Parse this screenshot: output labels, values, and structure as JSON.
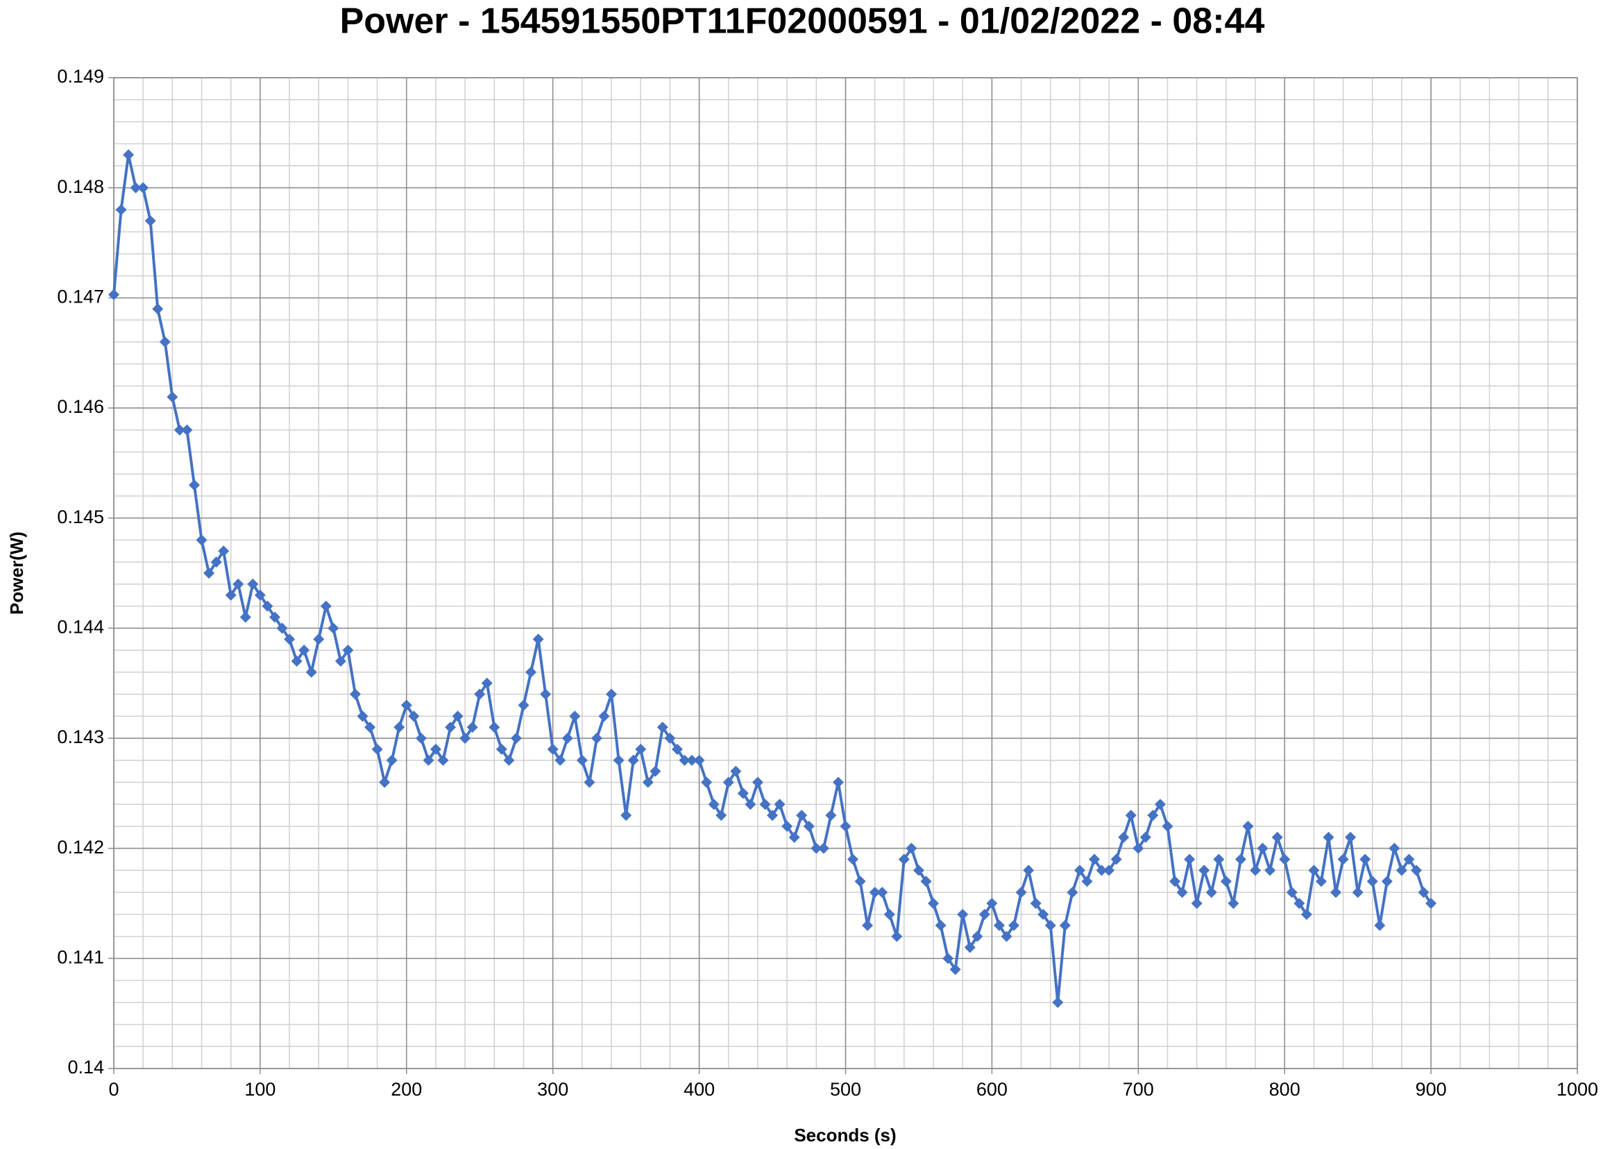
{
  "chart_data": {
    "type": "line",
    "title": "Power - 154591550PT11F02000591 - 01/02/2022 - 08:44",
    "x_label": "Seconds (s)",
    "y_label": "Power(W)",
    "xlim": [
      0,
      1000
    ],
    "xticks": [
      0,
      100,
      200,
      300,
      400,
      500,
      600,
      700,
      800,
      900,
      1000
    ],
    "ylim": [
      0.14,
      0.149
    ],
    "yticks": [
      0.14,
      0.141,
      0.142,
      0.143,
      0.144,
      0.145,
      0.146,
      0.147,
      0.148,
      0.149
    ],
    "x_minor_ticks": [
      0,
      20,
      40,
      60,
      80,
      100,
      120,
      140,
      160,
      180,
      200,
      220,
      240,
      260,
      280,
      300,
      320,
      340,
      360,
      380,
      400,
      420,
      440,
      460,
      480,
      500,
      520,
      540,
      560,
      580,
      600,
      620,
      640,
      660,
      680,
      700,
      720,
      740,
      760,
      780,
      800,
      820,
      840,
      860,
      880,
      900,
      920,
      940,
      960,
      980,
      1000
    ],
    "y_minor_ticks": [
      0.14,
      0.1402,
      0.1404,
      0.1406,
      0.1408,
      0.141,
      0.1412,
      0.1414,
      0.1416,
      0.1418,
      0.142,
      0.1422,
      0.1424,
      0.1426,
      0.1428,
      0.143,
      0.1432,
      0.1434,
      0.1436,
      0.1438,
      0.144,
      0.1442,
      0.1444,
      0.1446,
      0.1448,
      0.145,
      0.1452,
      0.1454,
      0.1456,
      0.1458,
      0.146,
      0.1462,
      0.1464,
      0.1466,
      0.1468,
      0.147,
      0.1472,
      0.1474,
      0.1476,
      0.1478,
      0.148,
      0.1482,
      0.1484,
      0.1486,
      0.1488,
      0.149
    ],
    "grid": true,
    "marker": "diamond",
    "x": [
      0,
      5,
      10,
      15,
      20,
      25,
      30,
      35,
      40,
      45,
      50,
      55,
      60,
      65,
      70,
      75,
      80,
      85,
      90,
      95,
      100,
      105,
      110,
      115,
      120,
      125,
      130,
      135,
      140,
      145,
      150,
      155,
      160,
      165,
      170,
      175,
      180,
      185,
      190,
      195,
      200,
      205,
      210,
      215,
      220,
      225,
      230,
      235,
      240,
      245,
      250,
      255,
      260,
      265,
      270,
      275,
      280,
      285,
      290,
      295,
      300,
      305,
      310,
      315,
      320,
      325,
      330,
      335,
      340,
      345,
      350,
      355,
      360,
      365,
      370,
      375,
      380,
      385,
      390,
      395,
      400,
      405,
      410,
      415,
      420,
      425,
      430,
      435,
      440,
      445,
      450,
      455,
      460,
      465,
      470,
      475,
      480,
      485,
      490,
      495,
      500,
      505,
      510,
      515,
      520,
      525,
      530,
      535,
      540,
      545,
      550,
      555,
      560,
      565,
      570,
      575,
      580,
      585,
      590,
      595,
      600,
      605,
      610,
      615,
      620,
      625,
      630,
      635,
      640,
      645,
      650,
      655,
      660,
      665,
      670,
      675,
      680,
      685,
      690,
      695,
      700,
      705,
      710,
      715,
      720,
      725,
      730,
      735,
      740,
      745,
      750,
      755,
      760,
      765,
      770,
      775,
      780,
      785,
      790,
      795,
      800,
      805,
      810,
      815,
      820,
      825,
      830,
      835,
      840,
      845,
      850,
      855,
      860,
      865,
      870,
      875,
      880,
      885,
      890,
      895,
      900
    ],
    "series": [
      {
        "color": "#4472c4",
        "values": [
          0.14703,
          0.1478,
          0.1483,
          0.148,
          0.148,
          0.1477,
          0.1469,
          0.1466,
          0.1461,
          0.1458,
          0.1458,
          0.1453,
          0.1448,
          0.1445,
          0.1446,
          0.1447,
          0.1443,
          0.1444,
          0.1441,
          0.1444,
          0.1443,
          0.1442,
          0.1441,
          0.144,
          0.1439,
          0.1437,
          0.1438,
          0.1436,
          0.1439,
          0.1442,
          0.144,
          0.1437,
          0.1438,
          0.1434,
          0.1432,
          0.1431,
          0.1429,
          0.1426,
          0.1428,
          0.1431,
          0.1433,
          0.1432,
          0.143,
          0.1428,
          0.1429,
          0.1428,
          0.1431,
          0.1432,
          0.143,
          0.1431,
          0.1434,
          0.1435,
          0.1431,
          0.1429,
          0.1428,
          0.143,
          0.1433,
          0.1436,
          0.1439,
          0.1434,
          0.1429,
          0.1428,
          0.143,
          0.1432,
          0.1428,
          0.1426,
          0.143,
          0.1432,
          0.1434,
          0.1428,
          0.1423,
          0.1428,
          0.1429,
          0.1426,
          0.1427,
          0.1431,
          0.143,
          0.1429,
          0.1428,
          0.1428,
          0.1428,
          0.1426,
          0.1424,
          0.1423,
          0.1426,
          0.1427,
          0.1425,
          0.1424,
          0.1426,
          0.1424,
          0.1423,
          0.1424,
          0.1422,
          0.1421,
          0.1423,
          0.1422,
          0.142,
          0.142,
          0.1423,
          0.1426,
          0.1422,
          0.1419,
          0.1417,
          0.1413,
          0.1416,
          0.1416,
          0.1414,
          0.1412,
          0.1419,
          0.142,
          0.1418,
          0.1417,
          0.1415,
          0.1413,
          0.141,
          0.1409,
          0.1414,
          0.1411,
          0.1412,
          0.1414,
          0.1415,
          0.1413,
          0.1412,
          0.1413,
          0.1416,
          0.1418,
          0.1415,
          0.1414,
          0.1413,
          0.1406,
          0.1413,
          0.1416,
          0.1418,
          0.1417,
          0.1419,
          0.1418,
          0.1418,
          0.1419,
          0.1421,
          0.1423,
          0.142,
          0.1421,
          0.1423,
          0.1424,
          0.1422,
          0.1417,
          0.1416,
          0.1419,
          0.1415,
          0.1418,
          0.1416,
          0.1419,
          0.1417,
          0.1415,
          0.1419,
          0.1422,
          0.1418,
          0.142,
          0.1418,
          0.1421,
          0.1419,
          0.1416,
          0.1415,
          0.1414,
          0.1418,
          0.1417,
          0.1421,
          0.1416,
          0.1419,
          0.1421,
          0.1416,
          0.1419,
          0.1417,
          0.1413,
          0.1417,
          0.142,
          0.1418,
          0.1419,
          0.1418,
          0.1416,
          0.1415
        ]
      }
    ]
  }
}
